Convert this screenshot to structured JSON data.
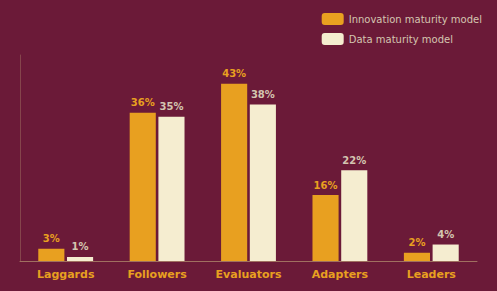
{
  "chart_data": {
    "type": "bar",
    "categories": [
      "Laggards",
      "Followers",
      "Evaluators",
      "Adapters",
      "Leaders"
    ],
    "series": [
      {
        "name": "Innovation maturity model",
        "color": "#E8A020",
        "values": [
          3,
          36,
          43,
          16,
          2
        ],
        "value_labels": [
          "3%",
          "36%",
          "43%",
          "16%",
          "2%"
        ]
      },
      {
        "name": "Data maturity model",
        "color": "#F5EDD0",
        "values": [
          1,
          35,
          38,
          22,
          4
        ],
        "value_labels": [
          "1%",
          "35%",
          "38%",
          "22%",
          "4%"
        ]
      }
    ],
    "ylim": [
      0,
      50
    ],
    "grid": false,
    "legend": "upper right",
    "data_labels": true,
    "tick_labels": "x"
  }
}
